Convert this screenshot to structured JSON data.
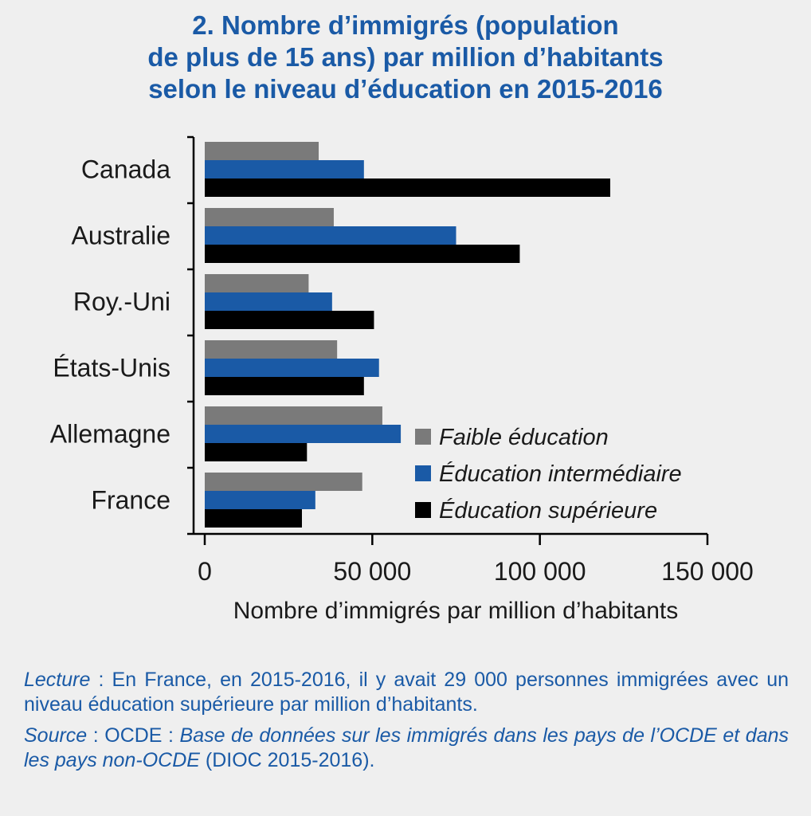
{
  "title_lines": [
    "2. Nombre d’immigrés (population",
    "de plus de 15 ans) par million d’habitants",
    "selon le niveau d’éducation en 2015-2016"
  ],
  "chart_data": {
    "type": "bar",
    "orientation": "horizontal",
    "categories": [
      "Canada",
      "Australie",
      "Roy.-Uni",
      "États-Unis",
      "Allemagne",
      "France"
    ],
    "series": [
      {
        "name": "Faible éducation",
        "color": "#7a7a7a",
        "values": [
          34000,
          38500,
          31000,
          39500,
          53000,
          47000
        ]
      },
      {
        "name": "Éducation intermédiaire",
        "color": "#1a5aa6",
        "values": [
          47500,
          75000,
          38000,
          52000,
          58500,
          33000
        ]
      },
      {
        "name": "Éducation supérieure",
        "color": "#000000",
        "values": [
          121000,
          94000,
          50500,
          47500,
          30500,
          29000
        ]
      }
    ],
    "xlim": [
      0,
      150000
    ],
    "xticks": [
      0,
      50000,
      100000,
      150000
    ],
    "xtick_labels": [
      "0",
      "50 000",
      "100 000",
      "150 000"
    ],
    "xlabel": "Nombre d’immigrés par million d’habitants",
    "legend_position": "bottom-right",
    "grid": false
  },
  "notes": {
    "lecture_label": "Lecture",
    "lecture_text": " : En France, en 2015-2016, il y avait 29 000 personnes immigrées avec un niveau éducation supérieure par million d’habitants.",
    "source_label": "Source",
    "source_sep": " : OCDE : ",
    "source_italic": "Base de données sur les immigrés dans les pays de l’OCDE et dans les pays non-OCDE",
    "source_tail": " (DIOC 2015-2016)."
  }
}
